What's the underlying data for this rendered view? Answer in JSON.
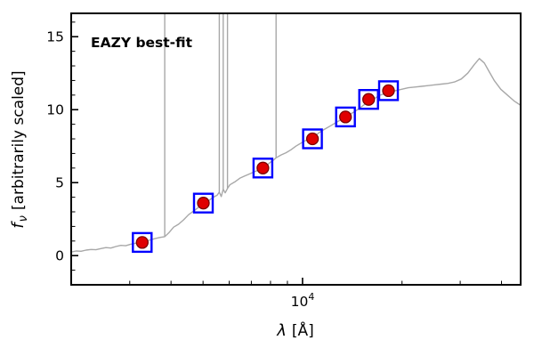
{
  "figure": {
    "annotation": {
      "label": "EAZY best-fit",
      "color": "#ff0000"
    }
  },
  "axes": {
    "ytick_labels": [
      "0",
      "5",
      "10",
      "15"
    ],
    "xtick_base": "10",
    "xtick_exp": "4",
    "xlabel_symbol": "λ",
    "xlabel_unit": "[Å]",
    "ylabel_symbol": "f",
    "ylabel_subscript": "ν",
    "ylabel_rest": "[arbitrarily scaled]"
  },
  "chart_data": {
    "type": "line",
    "title": "EAZY best-fit",
    "xlabel": "λ [Å]",
    "ylabel": "f_ν [arbitrarily scaled]",
    "x_scale": "log",
    "xlim_log10": [
      3.3,
      4.66
    ],
    "ylim": [
      -2,
      16.6
    ],
    "x_major_ticks_log10": [
      4.0
    ],
    "x_major_tick_labels": [
      "10^4"
    ],
    "y_major_ticks": [
      0,
      5,
      10,
      15
    ],
    "grid": false,
    "legend": "none",
    "series": [
      {
        "name": "best-fit model spectrum",
        "color": "#a8a8a8",
        "points_log10lambda_flux": [
          [
            3.3,
            0.25
          ],
          [
            3.315,
            0.32
          ],
          [
            3.33,
            0.3
          ],
          [
            3.345,
            0.38
          ],
          [
            3.36,
            0.42
          ],
          [
            3.375,
            0.4
          ],
          [
            3.39,
            0.48
          ],
          [
            3.405,
            0.55
          ],
          [
            3.42,
            0.52
          ],
          [
            3.435,
            0.62
          ],
          [
            3.45,
            0.7
          ],
          [
            3.465,
            0.68
          ],
          [
            3.48,
            0.78
          ],
          [
            3.495,
            0.85
          ],
          [
            3.51,
            0.88
          ],
          [
            3.525,
            0.98
          ],
          [
            3.54,
            1.08
          ],
          [
            3.555,
            1.18
          ],
          [
            3.57,
            1.25
          ],
          [
            3.583,
            1.3
          ],
          [
            3.595,
            1.55
          ],
          [
            3.61,
            1.95
          ],
          [
            3.625,
            2.15
          ],
          [
            3.64,
            2.45
          ],
          [
            3.655,
            2.8
          ],
          [
            3.67,
            3.05
          ],
          [
            3.685,
            3.3
          ],
          [
            3.7,
            3.55
          ],
          [
            3.715,
            3.75
          ],
          [
            3.73,
            4.0
          ],
          [
            3.742,
            4.15
          ],
          [
            3.748,
            4.35
          ],
          [
            3.754,
            4.05
          ],
          [
            3.76,
            4.55
          ],
          [
            3.766,
            4.3
          ],
          [
            3.773,
            4.6
          ],
          [
            3.78,
            4.85
          ],
          [
            3.795,
            5.05
          ],
          [
            3.81,
            5.3
          ],
          [
            3.825,
            5.45
          ],
          [
            3.84,
            5.6
          ],
          [
            3.855,
            5.75
          ],
          [
            3.87,
            5.9
          ],
          [
            3.885,
            6.05
          ],
          [
            3.9,
            6.35
          ],
          [
            3.912,
            6.55
          ],
          [
            3.92,
            6.7
          ],
          [
            3.935,
            6.9
          ],
          [
            3.95,
            7.05
          ],
          [
            3.965,
            7.25
          ],
          [
            3.98,
            7.5
          ],
          [
            3.995,
            7.7
          ],
          [
            4.01,
            7.9
          ],
          [
            4.025,
            8.05
          ],
          [
            4.04,
            8.25
          ],
          [
            4.055,
            8.5
          ],
          [
            4.07,
            8.7
          ],
          [
            4.085,
            8.9
          ],
          [
            4.1,
            9.1
          ],
          [
            4.115,
            9.3
          ],
          [
            4.13,
            9.45
          ],
          [
            4.145,
            9.7
          ],
          [
            4.16,
            9.9
          ],
          [
            4.175,
            10.15
          ],
          [
            4.19,
            10.4
          ],
          [
            4.205,
            10.6
          ],
          [
            4.22,
            10.8
          ],
          [
            4.235,
            11.0
          ],
          [
            4.25,
            11.1
          ],
          [
            4.265,
            11.2
          ],
          [
            4.28,
            11.3
          ],
          [
            4.3,
            11.4
          ],
          [
            4.32,
            11.5
          ],
          [
            4.34,
            11.55
          ],
          [
            4.36,
            11.6
          ],
          [
            4.38,
            11.65
          ],
          [
            4.4,
            11.7
          ],
          [
            4.42,
            11.75
          ],
          [
            4.44,
            11.8
          ],
          [
            4.46,
            11.9
          ],
          [
            4.48,
            12.1
          ],
          [
            4.5,
            12.5
          ],
          [
            4.52,
            13.1
          ],
          [
            4.535,
            13.5
          ],
          [
            4.55,
            13.2
          ],
          [
            4.565,
            12.6
          ],
          [
            4.58,
            12.0
          ],
          [
            4.6,
            11.4
          ],
          [
            4.62,
            11.0
          ],
          [
            4.64,
            10.6
          ],
          [
            4.66,
            10.3
          ]
        ]
      }
    ],
    "emission_lines": [
      {
        "log10_lambda": 3.583,
        "base_flux": 1.3
      },
      {
        "log10_lambda": 3.748,
        "base_flux": 4.3
      },
      {
        "log10_lambda": 3.76,
        "base_flux": 4.5
      },
      {
        "log10_lambda": 3.773,
        "base_flux": 4.6
      },
      {
        "log10_lambda": 3.92,
        "base_flux": 6.7
      }
    ],
    "photometry": {
      "name": "photometric points",
      "marker": "red filled circle inside open blue square",
      "square_color": "#0000ff",
      "circle_color": "#e00000",
      "circle_edge_color": "#7a0000",
      "lambda_angstrom": [
        3270,
        5010,
        7590,
        10700,
        13500,
        15850,
        18200
      ],
      "log10_lambda": [
        3.515,
        3.7,
        3.88,
        4.03,
        4.13,
        4.2,
        4.26
      ],
      "flux": [
        0.9,
        3.6,
        6.0,
        8.0,
        9.5,
        10.7,
        11.3
      ]
    }
  }
}
